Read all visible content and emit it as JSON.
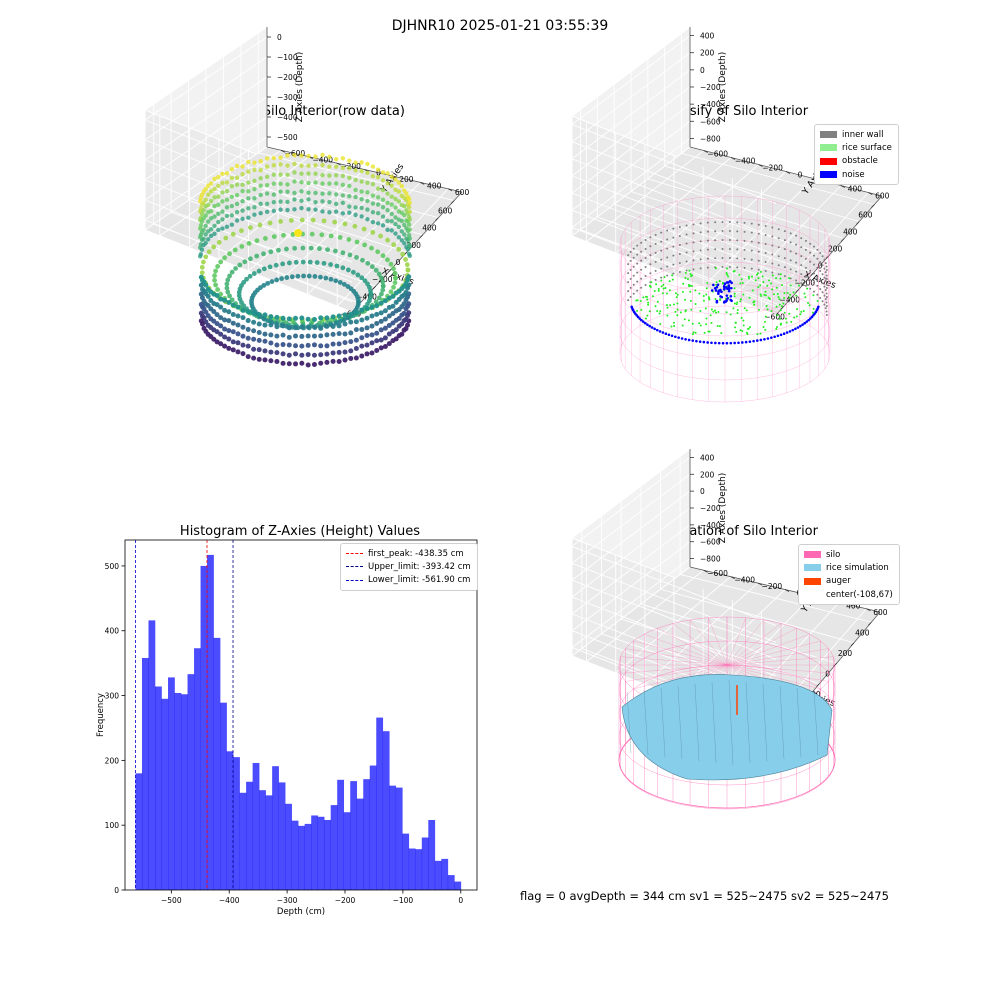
{
  "figure": {
    "suptitle": "DJHNR10 2025-01-21 03:55:39",
    "footer": "flag = 0     avgDepth = 344 cm  sv1 = 525~2475  sv2 = 525~2475"
  },
  "panels": {
    "raw": {
      "title": "3D Plot of Silo Interior(row data)",
      "xlabel": "X Axies",
      "ylabel": "Y Axies",
      "zlabel": "Z Axies (Depth)",
      "xticks": [
        "−600",
        "−400",
        "−200",
        "0",
        "200",
        "400",
        "600"
      ],
      "yticks": [
        "600",
        "400",
        "200",
        "0",
        "−200",
        "−400",
        "−600"
      ],
      "zticks": [
        "0",
        "−100",
        "−200",
        "−300",
        "−400",
        "−500"
      ]
    },
    "classify": {
      "title": "3D classify of Silo Interior",
      "xlabel": "X Axies",
      "ylabel": "Y Axies",
      "zlabel": "Z Axies (Depth)",
      "xticks": [
        "−600",
        "−400",
        "−200",
        "0",
        "200",
        "400",
        "600"
      ],
      "yticks": [
        "600",
        "400",
        "200",
        "0",
        "−200",
        "−400",
        "−600"
      ],
      "zticks": [
        "400",
        "200",
        "0",
        "−200",
        "−400",
        "−600",
        "−800"
      ],
      "legend": [
        {
          "label": "inner wall",
          "color": "#808080"
        },
        {
          "label": "rice surface",
          "color": "#90ee90"
        },
        {
          "label": "obstacle",
          "color": "#ff0000"
        },
        {
          "label": "noise",
          "color": "#0000ff"
        }
      ]
    },
    "simulation": {
      "title": "3D simulation of Silo Interior",
      "xlabel": "X Axies",
      "ylabel": "Y Axies",
      "zlabel": "Z Axies (Depth)",
      "xticks": [
        "−600",
        "−400",
        "−200",
        "0",
        "200",
        "400"
      ],
      "yticks": [
        "600",
        "400",
        "200",
        "0",
        "−200",
        "−400",
        "−600"
      ],
      "zticks": [
        "400",
        "200",
        "0",
        "−200",
        "−400",
        "−600",
        "−800"
      ],
      "legend": [
        {
          "label": "silo",
          "color": "#ff69b4"
        },
        {
          "label": "rice simulation",
          "color": "#87ceeb"
        },
        {
          "label": "auger",
          "color": "#ff4500"
        },
        {
          "label": "center(-108,67)",
          "color": ""
        }
      ]
    }
  },
  "chart_data": {
    "type": "bar",
    "title": "Histogram of Z-Axies (Height) Values",
    "xlabel": "Depth (cm)",
    "ylabel": "Frequency",
    "xlim": [
      -580,
      28
    ],
    "ylim": [
      0,
      540
    ],
    "xticks": [
      -500,
      -400,
      -300,
      -200,
      -100,
      0
    ],
    "xtick_labels": [
      "−500",
      "−400",
      "−300",
      "−200",
      "−100",
      "0"
    ],
    "yticks": [
      0,
      100,
      200,
      300,
      400,
      500
    ],
    "bin_start": -561.9,
    "bin_width": 11.24,
    "values": [
      180,
      358,
      416,
      314,
      295,
      328,
      304,
      302,
      333,
      373,
      500,
      517,
      389,
      289,
      214,
      205,
      150,
      167,
      196,
      154,
      146,
      191,
      166,
      133,
      107,
      99,
      102,
      115,
      113,
      108,
      131,
      170,
      120,
      168,
      141,
      171,
      192,
      266,
      245,
      161,
      158,
      87,
      64,
      63,
      81,
      108,
      45,
      48,
      23,
      13
    ],
    "bar_color": "#0000ff",
    "legend_position": "upper right",
    "reference_lines": [
      {
        "label": "first_peak: -438.35 cm",
        "x": -438.35,
        "color": "#ff0000"
      },
      {
        "label": "Upper_limit: -393.42 cm",
        "x": -393.42,
        "color": "#00008b"
      },
      {
        "label": "Lower_limit: -561.90 cm",
        "x": -561.9,
        "color": "#0000cd"
      }
    ]
  }
}
